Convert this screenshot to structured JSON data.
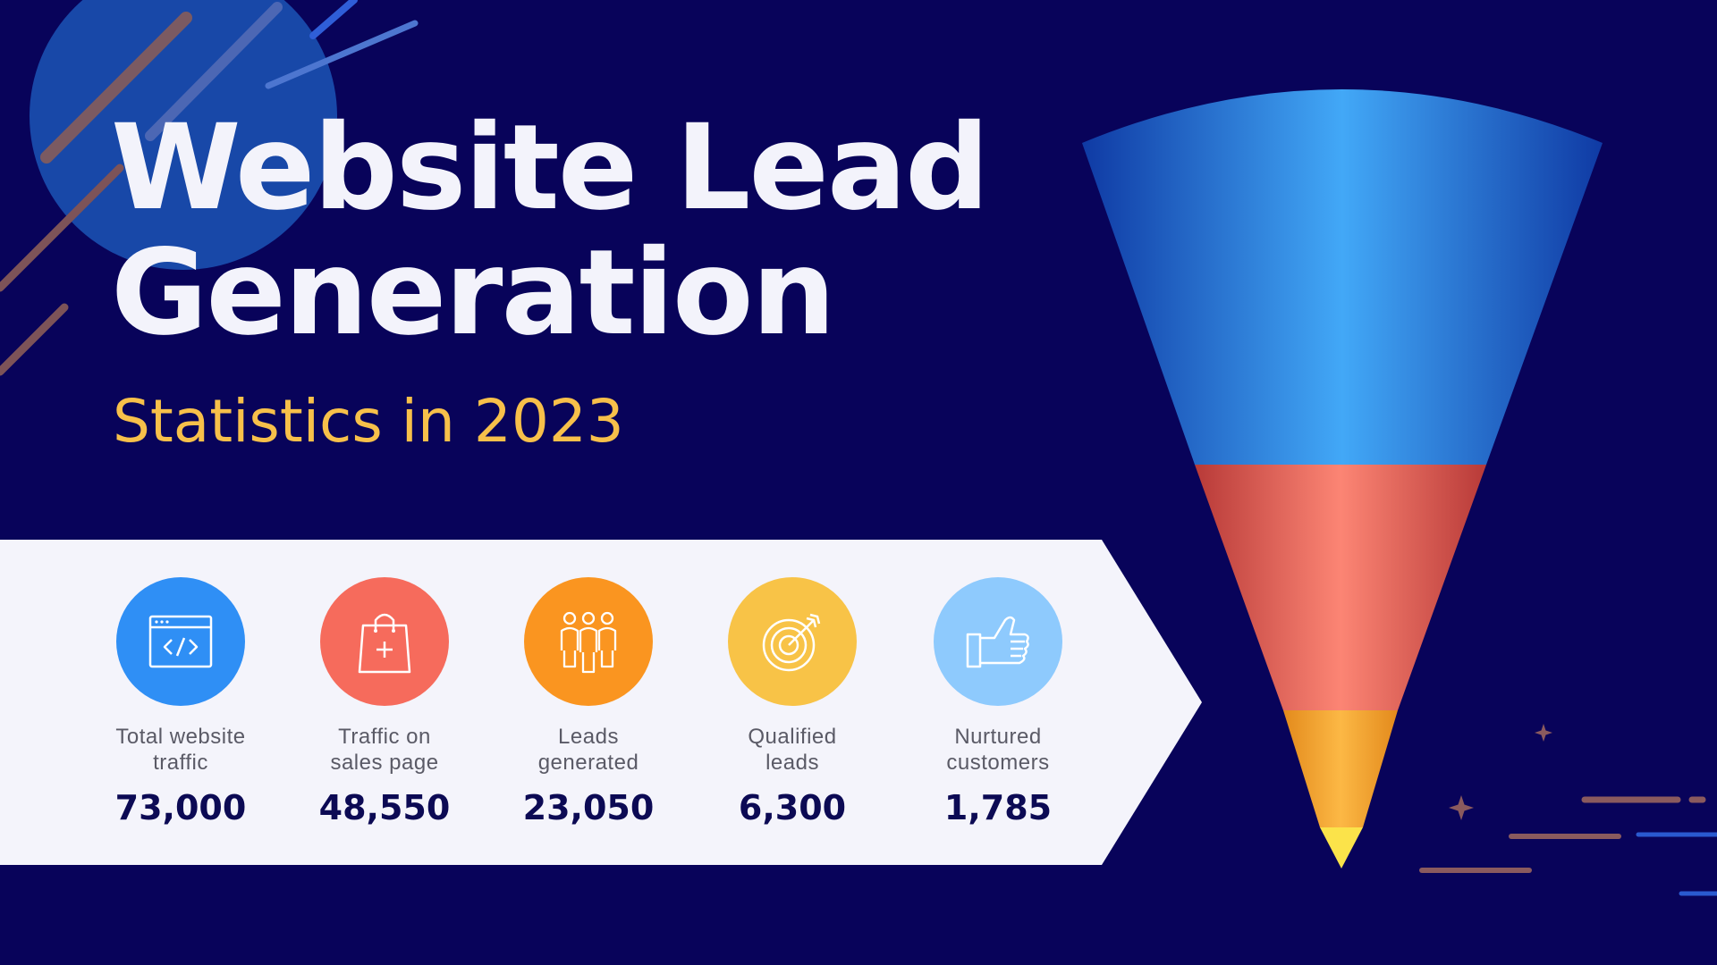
{
  "title": {
    "line1": "Website Lead",
    "line2": "Generation"
  },
  "subtitle": "Statistics in 2023",
  "colors": {
    "background": "#08035a",
    "title": "#f3f3fb",
    "subtitle": "#f7c04a",
    "banner": "#f4f4fb",
    "value": "#0c0a54"
  },
  "stats": [
    {
      "icon": "code-window-icon",
      "color": "#2f8ff5",
      "label": "Total website\ntraffic",
      "value": "73,000"
    },
    {
      "icon": "shopping-bag-icon",
      "color": "#f66b5c",
      "label": "Traffic on\nsales page",
      "value": "48,550"
    },
    {
      "icon": "people-group-icon",
      "color": "#fa9520",
      "label": "Leads\ngenerated",
      "value": "23,050"
    },
    {
      "icon": "target-icon",
      "color": "#f8c347",
      "label": "Qualified\nleads",
      "value": "6,300"
    },
    {
      "icon": "thumbs-up-icon",
      "color": "#8ecafd",
      "label": "Nurtured\ncustomers",
      "value": "1,785"
    }
  ]
}
